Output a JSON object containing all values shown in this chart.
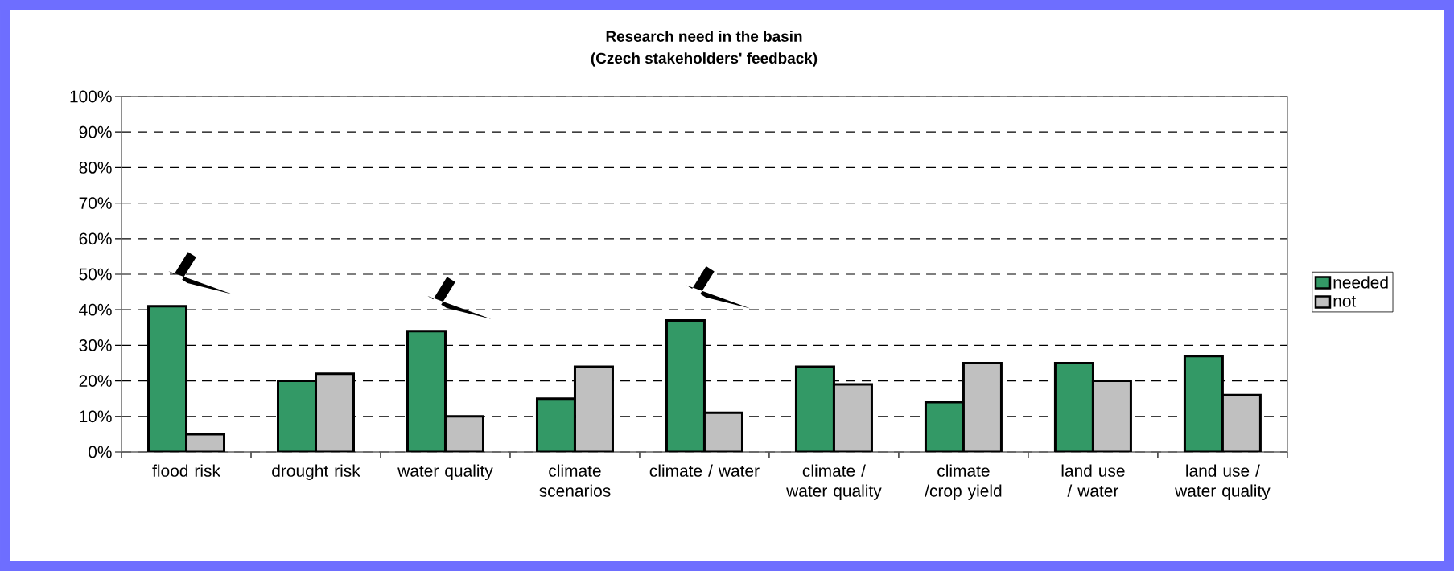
{
  "chart_data": {
    "type": "bar",
    "title": "Research need in the basin",
    "subtitle": "(Czech stakeholders' feedback)",
    "categories": [
      "flood risk",
      "drought risk",
      "water quality",
      "climate scenarios",
      "climate / water",
      "climate / water quality",
      "climate /crop yield",
      "land use / water",
      "land use / water quality"
    ],
    "series": [
      {
        "name": "needed",
        "color": "#339966",
        "values": [
          41,
          20,
          34,
          15,
          37,
          24,
          14,
          25,
          27
        ]
      },
      {
        "name": "not",
        "color": "#c0c0c0",
        "values": [
          5,
          22,
          10,
          24,
          11,
          19,
          25,
          20,
          16
        ]
      }
    ],
    "ylim": [
      0,
      100
    ],
    "yticks": [
      {
        "value": 0,
        "label": "0%"
      },
      {
        "value": 10,
        "label": "10%"
      },
      {
        "value": 20,
        "label": "20%"
      },
      {
        "value": 30,
        "label": "30%"
      },
      {
        "value": 40,
        "label": "40%"
      },
      {
        "value": 50,
        "label": "50%"
      },
      {
        "value": 60,
        "label": "60%"
      },
      {
        "value": 70,
        "label": "70%"
      },
      {
        "value": 80,
        "label": "80%"
      },
      {
        "value": 90,
        "label": "90%"
      },
      {
        "value": 100,
        "label": "100%"
      }
    ],
    "grid": "y",
    "legend": "right"
  }
}
